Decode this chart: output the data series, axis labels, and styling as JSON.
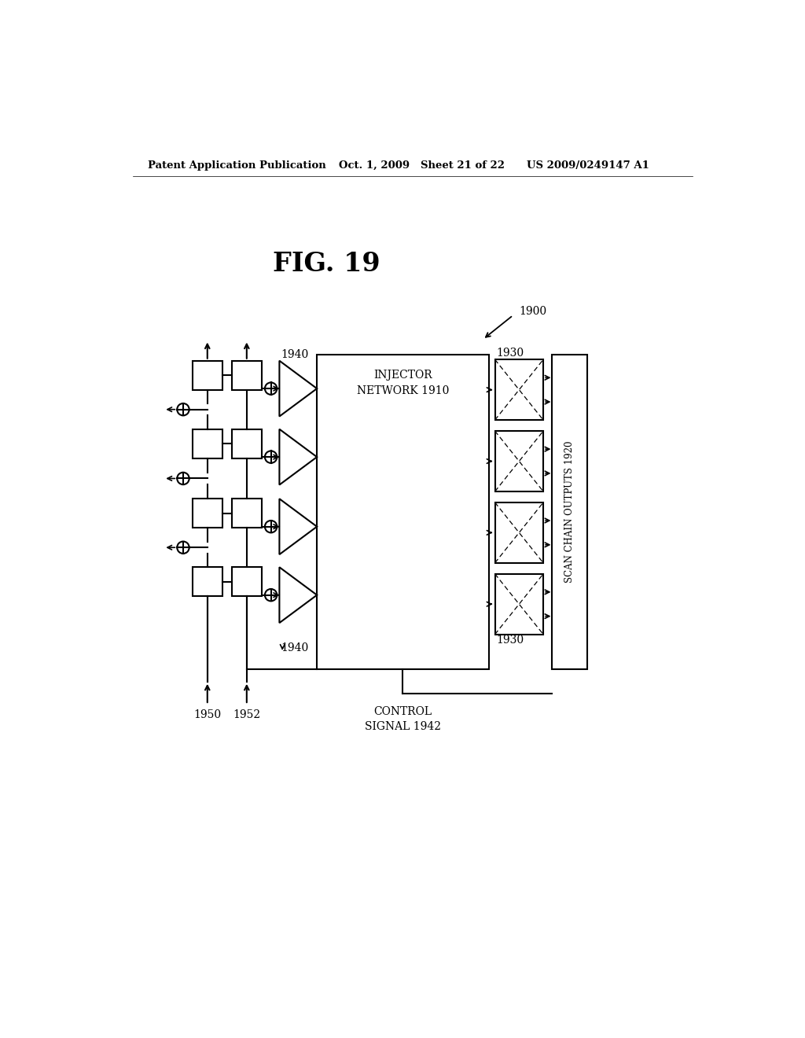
{
  "bg_color": "#ffffff",
  "header_left": "Patent Application Publication",
  "header_mid": "Oct. 1, 2009   Sheet 21 of 22",
  "header_right": "US 2009/0249147 A1",
  "fig_label": "FIG. 19",
  "label_1900": "1900",
  "label_1910": "INJECTOR\nNETWORK 1910",
  "label_1920": "SCAN CHAIN OUTPUTS 1920",
  "label_1930_top": "1930",
  "label_1930_bot": "1930",
  "label_1940_top": "1940",
  "label_1940_bot": "1940",
  "label_1950": "1950",
  "label_1952": "1952",
  "label_control": "CONTROL\nSIGNAL 1942"
}
